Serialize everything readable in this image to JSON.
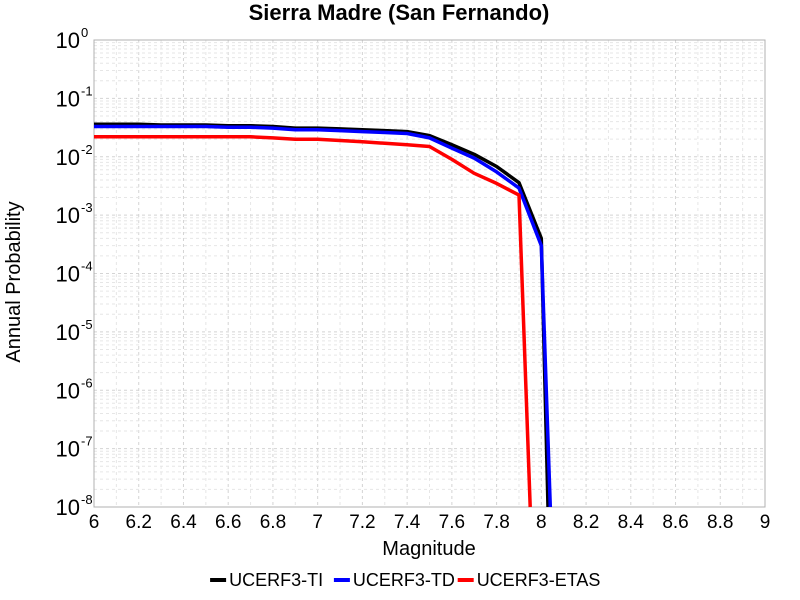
{
  "chart_data": {
    "type": "line",
    "title": "Sierra Madre (San Fernando)",
    "xlabel": "Magnitude",
    "ylabel": "Annual Probability",
    "xlim": [
      6,
      9
    ],
    "ylim": [
      1e-08,
      1
    ],
    "yscale": "log",
    "grid": true,
    "legend_position": "bottom",
    "x_ticks": [
      "6",
      "6.2",
      "6.4",
      "6.6",
      "6.8",
      "7",
      "7.2",
      "7.4",
      "7.6",
      "7.8",
      "8",
      "8.2",
      "8.4",
      "8.6",
      "8.8",
      "9"
    ],
    "y_tick_base": "10",
    "y_tick_exponents": [
      "0",
      "-1",
      "-2",
      "-3",
      "-4",
      "-5",
      "-6",
      "-7",
      "-8"
    ],
    "series": [
      {
        "name": "UCERF3-TI",
        "color": "#000000",
        "x": [
          6.0,
          6.1,
          6.2,
          6.3,
          6.4,
          6.5,
          6.6,
          6.7,
          6.8,
          6.9,
          7.0,
          7.1,
          7.2,
          7.3,
          7.4,
          7.5,
          7.6,
          7.7,
          7.8,
          7.9,
          8.0,
          8.03
        ],
        "y": [
          0.036,
          0.036,
          0.036,
          0.035,
          0.035,
          0.035,
          0.034,
          0.034,
          0.033,
          0.031,
          0.031,
          0.03,
          0.029,
          0.028,
          0.027,
          0.023,
          0.016,
          0.011,
          0.0068,
          0.0036,
          0.0004,
          1e-08
        ]
      },
      {
        "name": "UCERF3-TD",
        "color": "#0000ff",
        "x": [
          6.0,
          6.1,
          6.2,
          6.3,
          6.4,
          6.5,
          6.6,
          6.7,
          6.8,
          6.9,
          7.0,
          7.1,
          7.2,
          7.3,
          7.4,
          7.5,
          7.6,
          7.7,
          7.8,
          7.9,
          8.0,
          8.04
        ],
        "y": [
          0.033,
          0.033,
          0.033,
          0.033,
          0.033,
          0.033,
          0.032,
          0.032,
          0.031,
          0.029,
          0.029,
          0.028,
          0.027,
          0.026,
          0.025,
          0.021,
          0.014,
          0.0095,
          0.0055,
          0.0029,
          0.0003,
          1e-08
        ]
      },
      {
        "name": "UCERF3-ETAS",
        "color": "#ff0000",
        "x": [
          6.0,
          6.1,
          6.2,
          6.3,
          6.4,
          6.5,
          6.6,
          6.7,
          6.8,
          6.9,
          7.0,
          7.1,
          7.2,
          7.3,
          7.4,
          7.5,
          7.6,
          7.7,
          7.8,
          7.9,
          7.95
        ],
        "y": [
          0.022,
          0.022,
          0.022,
          0.022,
          0.022,
          0.022,
          0.022,
          0.022,
          0.021,
          0.02,
          0.02,
          0.019,
          0.018,
          0.017,
          0.016,
          0.015,
          0.009,
          0.0052,
          0.0035,
          0.0022,
          1e-08
        ]
      }
    ]
  }
}
